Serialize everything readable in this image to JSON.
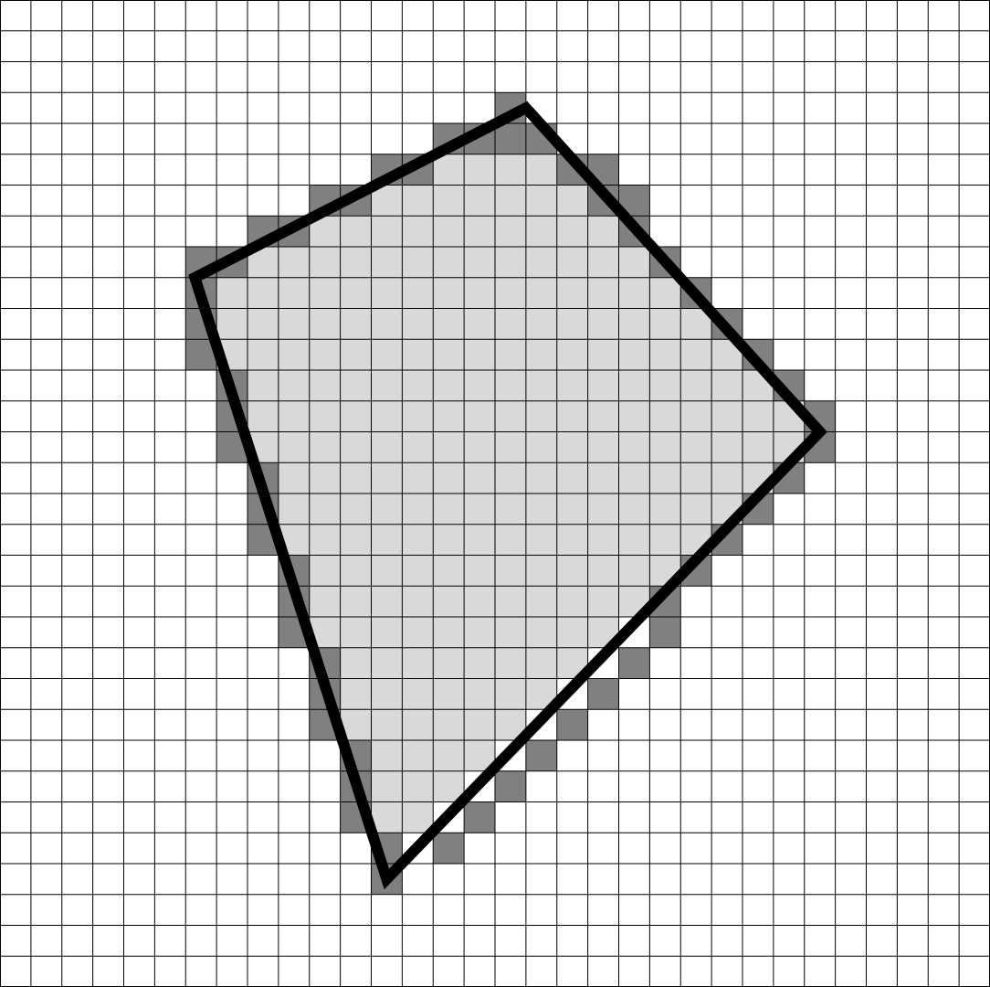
{
  "grid": {
    "columns": 32,
    "rows": 32
  },
  "colors": {
    "background": "#ffffff",
    "grid_line": "#000000",
    "interior_cell": "#d9d9d9",
    "boundary_cell": "#808080",
    "polygon_outline": "#000000"
  },
  "polygon": {
    "vertices_cells": [
      [
        17,
        3.5
      ],
      [
        26.5,
        14
      ],
      [
        12.5,
        28.5
      ],
      [
        6.3,
        9
      ]
    ]
  },
  "filled_cells": {
    "boundary": [
      [
        3,
        16
      ],
      [
        4,
        14
      ],
      [
        4,
        15
      ],
      [
        4,
        16
      ],
      [
        4,
        17
      ],
      [
        5,
        12
      ],
      [
        5,
        13
      ],
      [
        5,
        18
      ],
      [
        5,
        19
      ],
      [
        6,
        10
      ],
      [
        6,
        11
      ],
      [
        6,
        19
      ],
      [
        6,
        20
      ],
      [
        7,
        8
      ],
      [
        7,
        9
      ],
      [
        7,
        20
      ],
      [
        8,
        6
      ],
      [
        8,
        7
      ],
      [
        8,
        21
      ],
      [
        9,
        6
      ],
      [
        9,
        22
      ],
      [
        10,
        6
      ],
      [
        10,
        23
      ],
      [
        11,
        6
      ],
      [
        11,
        24
      ],
      [
        12,
        7
      ],
      [
        12,
        25
      ],
      [
        13,
        7
      ],
      [
        13,
        26
      ],
      [
        14,
        7
      ],
      [
        14,
        26
      ],
      [
        15,
        8
      ],
      [
        15,
        25
      ],
      [
        16,
        8
      ],
      [
        16,
        24
      ],
      [
        17,
        8
      ],
      [
        17,
        23
      ],
      [
        18,
        9
      ],
      [
        18,
        22
      ],
      [
        19,
        9
      ],
      [
        19,
        21
      ],
      [
        20,
        9
      ],
      [
        20,
        21
      ],
      [
        21,
        10
      ],
      [
        21,
        20
      ],
      [
        22,
        10
      ],
      [
        22,
        19
      ],
      [
        23,
        10
      ],
      [
        23,
        18
      ],
      [
        24,
        11
      ],
      [
        24,
        17
      ],
      [
        25,
        11
      ],
      [
        25,
        16
      ],
      [
        26,
        11
      ],
      [
        26,
        15
      ],
      [
        27,
        12
      ],
      [
        27,
        14
      ],
      [
        28,
        12
      ]
    ]
  }
}
